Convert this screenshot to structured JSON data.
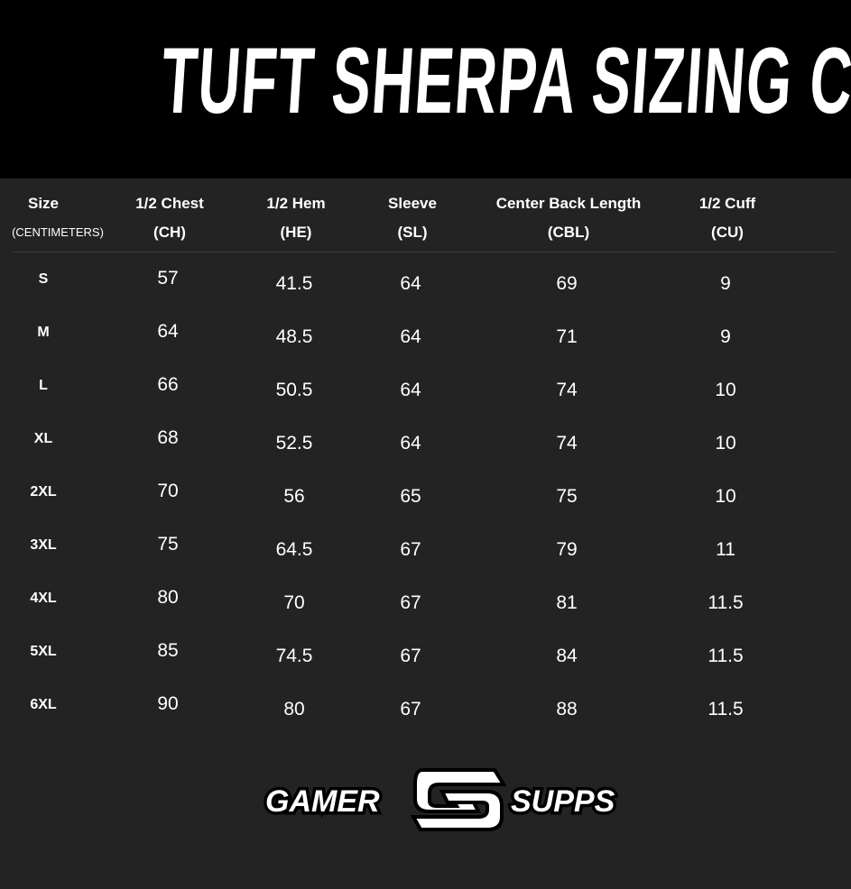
{
  "title": "TUFT SHERPA SIZING CHART:",
  "columns": [
    {
      "label": "Size",
      "sub": "(CENTIMETERS)"
    },
    {
      "label": "1/2 Chest",
      "sub": "(CH)"
    },
    {
      "label": "1/2 Hem",
      "sub": "(HE)"
    },
    {
      "label": "Sleeve",
      "sub": "(SL)"
    },
    {
      "label": "Center Back Length",
      "sub": "(CBL)"
    },
    {
      "label": "1/2 Cuff",
      "sub": "(CU)"
    }
  ],
  "rows": [
    [
      "S",
      "57",
      "41.5",
      "64",
      "69",
      "9"
    ],
    [
      "M",
      "64",
      "48.5",
      "64",
      "71",
      "9"
    ],
    [
      "L",
      "66",
      "50.5",
      "64",
      "74",
      "10"
    ],
    [
      "XL",
      "68",
      "52.5",
      "64",
      "74",
      "10"
    ],
    [
      "2XL",
      "70",
      "56",
      "65",
      "75",
      "10"
    ],
    [
      "3XL",
      "75",
      "64.5",
      "67",
      "79",
      "11"
    ],
    [
      "4XL",
      "80",
      "70",
      "67",
      "81",
      "11.5"
    ],
    [
      "5XL",
      "85",
      "74.5",
      "67",
      "84",
      "11.5"
    ],
    [
      "6XL",
      "90",
      "80",
      "67",
      "88",
      "11.5"
    ]
  ],
  "logo": {
    "left": "GAMER",
    "right": "SUPPS"
  },
  "colors": {
    "banner": "#000000",
    "background": "#232323",
    "text": "#ffffff"
  }
}
